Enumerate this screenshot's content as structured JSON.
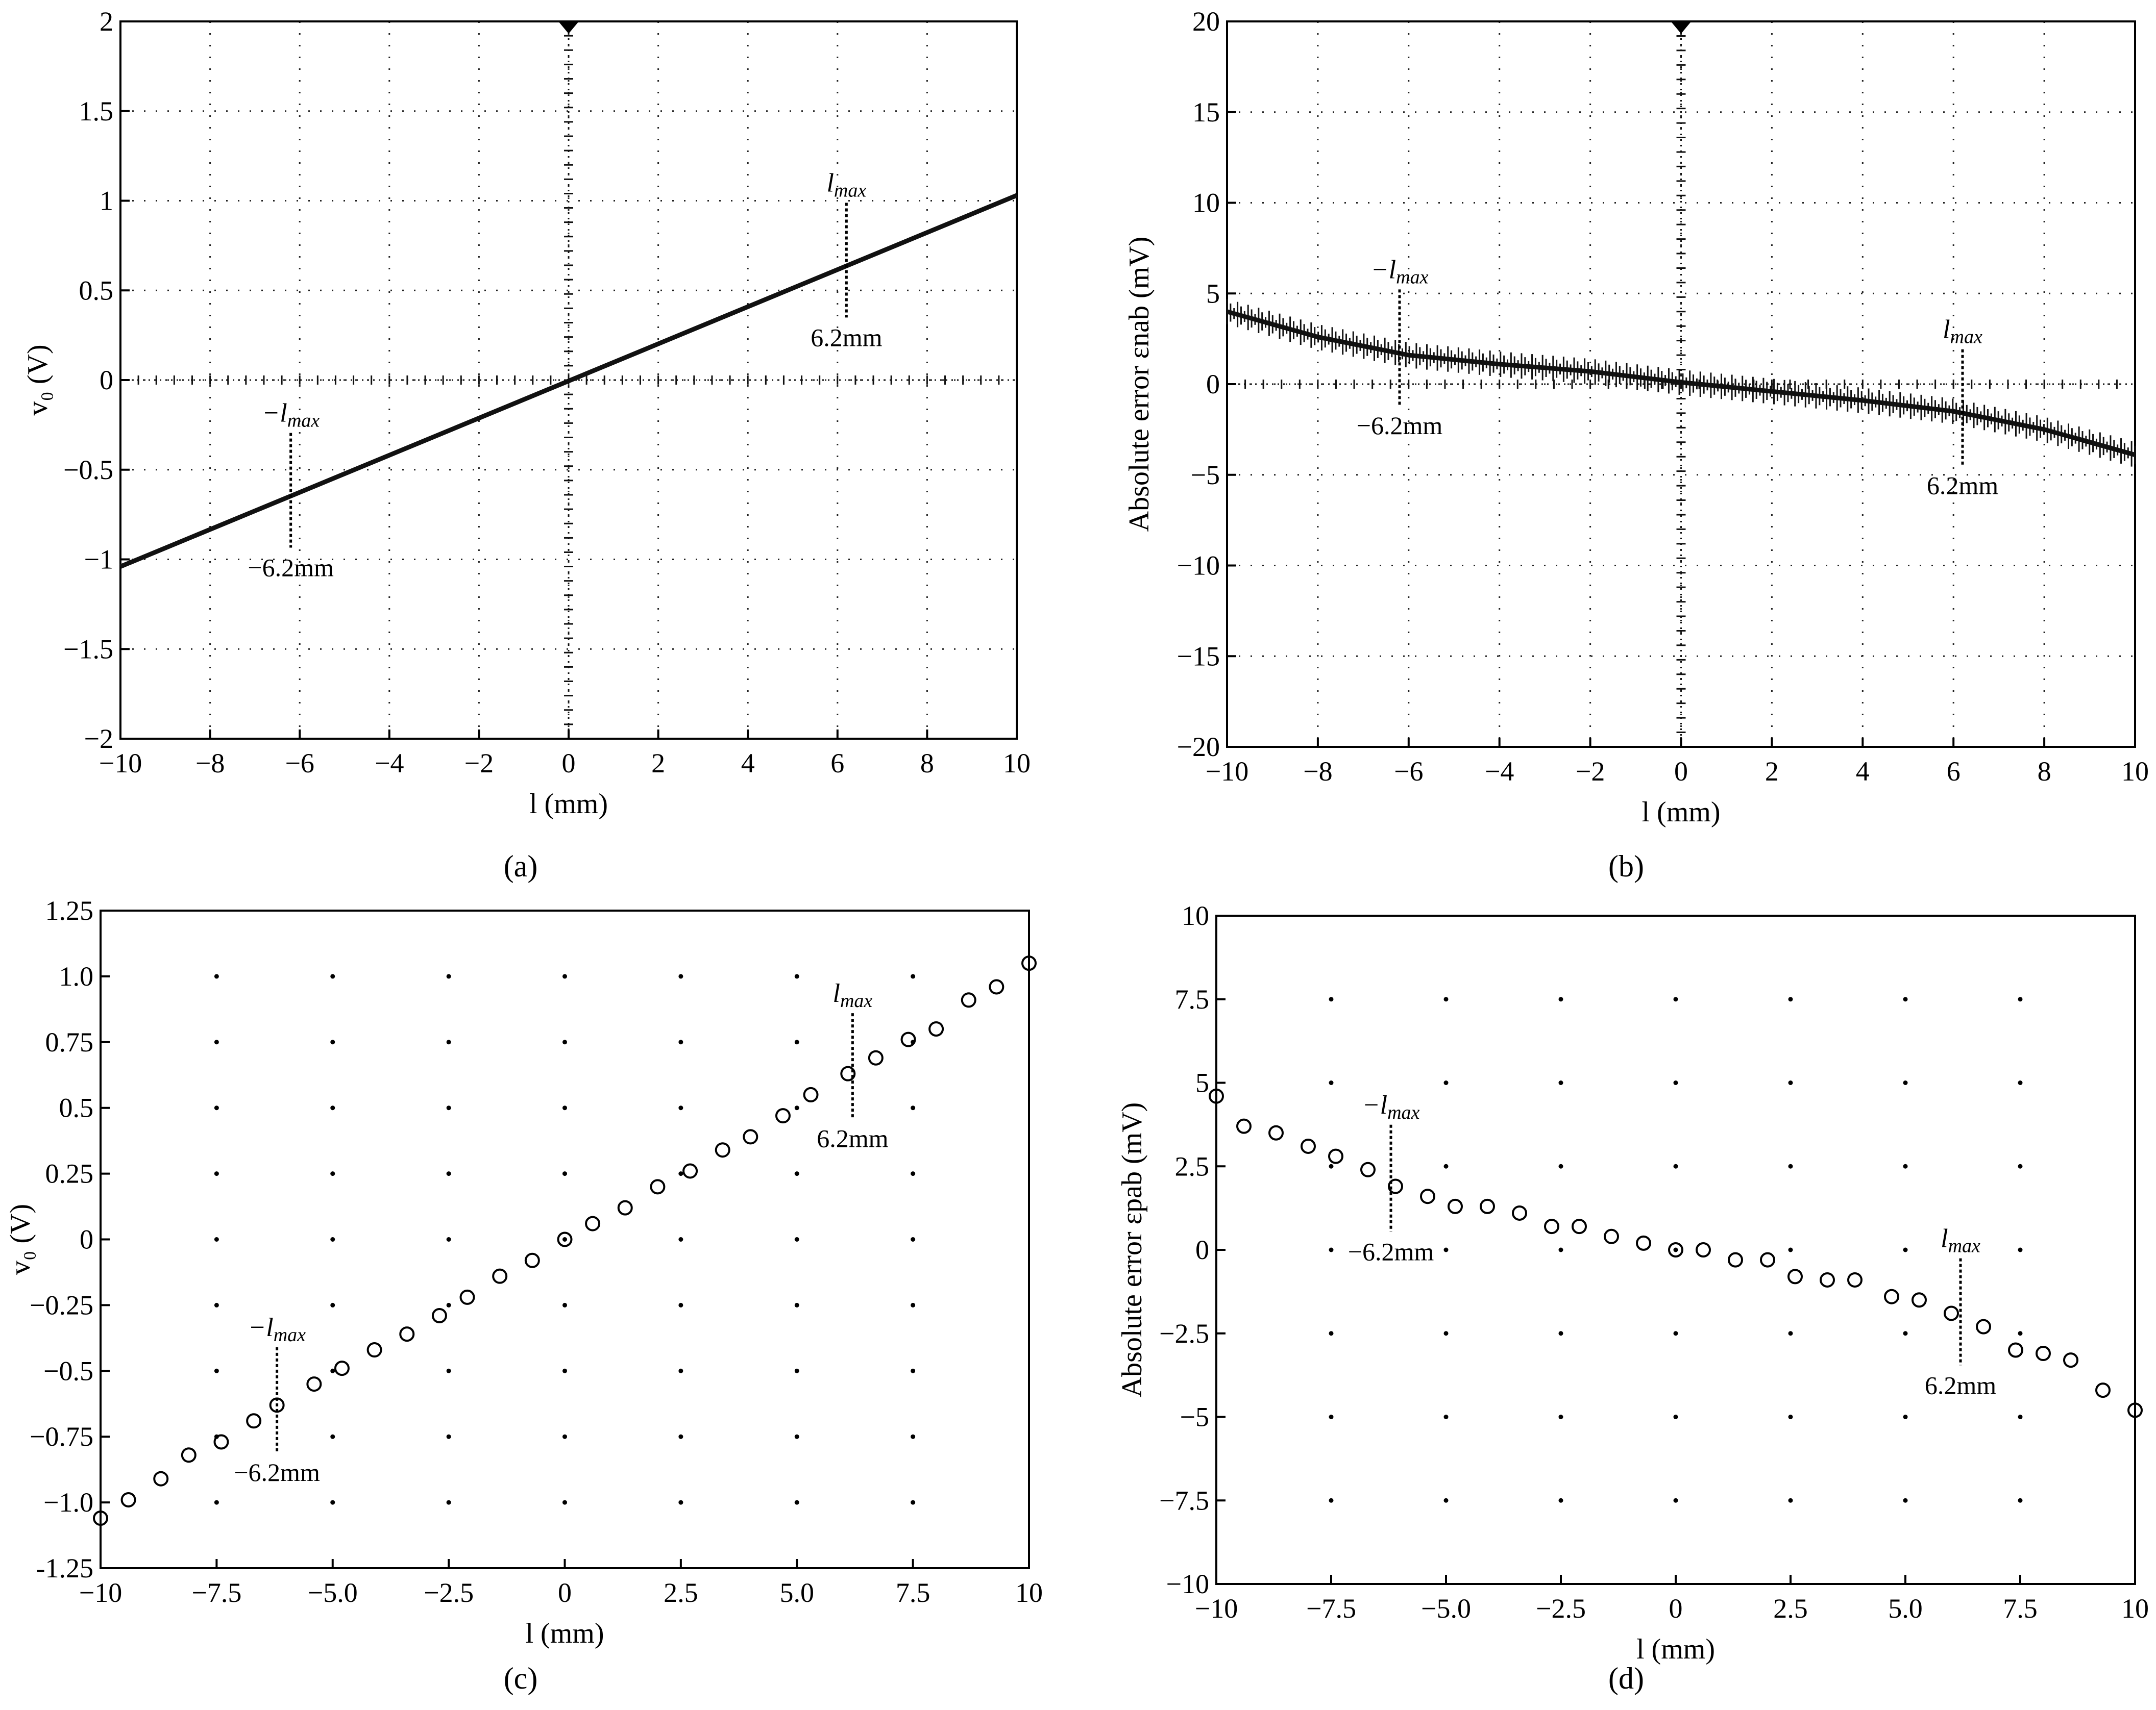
{
  "chart_data": [
    {
      "id": "a",
      "type": "line",
      "panel_label": "(a)",
      "xlabel": "l (mm)",
      "ylabel": "v₀ (V)",
      "xlim": [
        -10,
        10
      ],
      "ylim": [
        -2,
        2
      ],
      "xticks": [
        -10,
        -8,
        -6,
        -4,
        -2,
        0,
        2,
        4,
        6,
        8,
        10
      ],
      "yticks": [
        -2,
        -1.5,
        -1,
        -0.5,
        0,
        0.5,
        1,
        1.5,
        2
      ],
      "xtick_labels": [
        "−10",
        "−8",
        "−6",
        "−4",
        "−2",
        "0",
        "2",
        "4",
        "6",
        "8",
        "10"
      ],
      "ytick_labels": [
        "−2",
        "−1.5",
        "−1",
        "−0.5",
        "0",
        "0.5",
        "1",
        "1.5",
        "2"
      ],
      "grid": "dotted oscilloscope",
      "series": [
        {
          "name": "vo",
          "x": [
            -10,
            10
          ],
          "values": [
            -1.04,
            1.03
          ]
        }
      ],
      "annotations": [
        {
          "label": "−l",
          "sub": "max",
          "value_label": "−6.2mm",
          "x": -6.2
        },
        {
          "label": "l",
          "sub": "max",
          "value_label": "6.2mm",
          "x": 6.2
        }
      ]
    },
    {
      "id": "b",
      "type": "line",
      "panel_label": "(b)",
      "xlabel": "l (mm)",
      "ylabel": "Absolute error εnab (mV)",
      "xlim": [
        -10,
        10
      ],
      "ylim": [
        -20,
        20
      ],
      "xticks": [
        -10,
        -8,
        -6,
        -4,
        -2,
        0,
        2,
        4,
        6,
        8,
        10
      ],
      "yticks": [
        -20,
        -15,
        -10,
        -5,
        0,
        5,
        10,
        15,
        20
      ],
      "xtick_labels": [
        "−10",
        "−8",
        "−6",
        "−4",
        "−2",
        "0",
        "2",
        "4",
        "6",
        "8",
        "10"
      ],
      "ytick_labels": [
        "−20",
        "−15",
        "−10",
        "−5",
        "0",
        "5",
        "10",
        "15",
        "20"
      ],
      "grid": "dotted oscilloscope",
      "series": [
        {
          "name": "error",
          "x": [
            -10,
            -8,
            -6,
            -4,
            -2,
            0,
            2,
            4,
            6,
            8,
            10
          ],
          "values": [
            4.0,
            2.6,
            1.6,
            1.1,
            0.7,
            0.1,
            -0.4,
            -0.9,
            -1.5,
            -2.5,
            -3.9
          ]
        }
      ],
      "annotations": [
        {
          "label": "−l",
          "sub": "max",
          "value_label": "−6.2mm",
          "x": -6.2
        },
        {
          "label": "l",
          "sub": "max",
          "value_label": "6.2mm",
          "x": 6.2
        }
      ]
    },
    {
      "id": "c",
      "type": "scatter",
      "panel_label": "(c)",
      "xlabel": "l (mm)",
      "ylabel": "v₀ (V)",
      "xlim": [
        -10,
        10
      ],
      "ylim": [
        -1.25,
        1.25
      ],
      "xticks": [
        -10,
        -7.5,
        -5,
        -2.5,
        0,
        2.5,
        5,
        7.5,
        10
      ],
      "yticks": [
        -1.25,
        -1.0,
        -0.75,
        -0.5,
        -0.25,
        0,
        0.25,
        0.5,
        0.75,
        1.0,
        1.25
      ],
      "xtick_labels": [
        "−10",
        "−7.5",
        "−5.0",
        "−2.5",
        "0",
        "2.5",
        "5.0",
        "7.5",
        "10"
      ],
      "ytick_labels": [
        "-1.25",
        "−1.0",
        "−0.75",
        "−0.5",
        "−0.25",
        "0",
        "0.25",
        "0.5",
        "0.75",
        "1.0",
        "1.25"
      ],
      "grid": "dots",
      "series": [
        {
          "name": "vo",
          "x": [
            -10,
            -9.4,
            -8.7,
            -8.1,
            -7.4,
            -6.7,
            -6.2,
            -5.4,
            -4.8,
            -4.1,
            -3.4,
            -2.7,
            -2.1,
            -1.4,
            -0.7,
            0,
            0.6,
            1.3,
            2.0,
            2.7,
            3.4,
            4.0,
            4.7,
            5.3,
            6.1,
            6.7,
            7.4,
            8.0,
            8.7,
            9.3,
            10
          ],
          "values": [
            -1.06,
            -0.99,
            -0.91,
            -0.82,
            -0.77,
            -0.69,
            -0.63,
            -0.55,
            -0.49,
            -0.42,
            -0.36,
            -0.29,
            -0.22,
            -0.14,
            -0.08,
            0,
            0.06,
            0.12,
            0.2,
            0.26,
            0.34,
            0.39,
            0.47,
            0.55,
            0.63,
            0.69,
            0.76,
            0.8,
            0.91,
            0.96,
            1.05
          ]
        }
      ],
      "annotations": [
        {
          "label": "−l",
          "sub": "max",
          "value_label": "−6.2mm",
          "x": -6.2
        },
        {
          "label": "l",
          "sub": "max",
          "value_label": "6.2mm",
          "x": 6.2
        }
      ]
    },
    {
      "id": "d",
      "type": "scatter",
      "panel_label": "(d)",
      "xlabel": "l (mm)",
      "ylabel": "Absolute error εpab (mV)",
      "xlim": [
        -10,
        10
      ],
      "ylim": [
        -10,
        10
      ],
      "xticks": [
        -10,
        -7.5,
        -5,
        -2.5,
        0,
        2.5,
        5,
        7.5,
        10
      ],
      "yticks": [
        -10,
        -7.5,
        -5,
        -2.5,
        0,
        2.5,
        5,
        7.5,
        10
      ],
      "xtick_labels": [
        "−10",
        "−7.5",
        "−5.0",
        "−2.5",
        "0",
        "2.5",
        "5.0",
        "7.5",
        "10"
      ],
      "ytick_labels": [
        "−10",
        "−7.5",
        "−5",
        "−2.5",
        "0",
        "2.5",
        "5",
        "7.5",
        "10"
      ],
      "grid": "dots",
      "series": [
        {
          "name": "error",
          "x": [
            -10,
            -9.4,
            -8.7,
            -8.0,
            -7.4,
            -6.7,
            -6.1,
            -5.4,
            -4.8,
            -4.1,
            -3.4,
            -2.7,
            -2.1,
            -1.4,
            -0.7,
            0,
            0.6,
            1.3,
            2.0,
            2.6,
            3.3,
            3.9,
            4.7,
            5.3,
            6.0,
            6.7,
            7.4,
            8.0,
            8.6,
            9.3,
            10
          ],
          "values": [
            4.6,
            3.7,
            3.5,
            3.1,
            2.8,
            2.4,
            1.9,
            1.6,
            1.3,
            1.3,
            1.1,
            0.7,
            0.7,
            0.4,
            0.2,
            0.0,
            0.0,
            -0.3,
            -0.3,
            -0.8,
            -0.9,
            -0.9,
            -1.4,
            -1.5,
            -1.9,
            -2.3,
            -3.0,
            -3.1,
            -3.3,
            -4.2,
            -4.8
          ]
        }
      ],
      "annotations": [
        {
          "label": "−l",
          "sub": "max",
          "value_label": "−6.2mm",
          "x": -6.2
        },
        {
          "label": "l",
          "sub": "max",
          "value_label": "6.2mm",
          "x": 6.2
        }
      ]
    }
  ]
}
